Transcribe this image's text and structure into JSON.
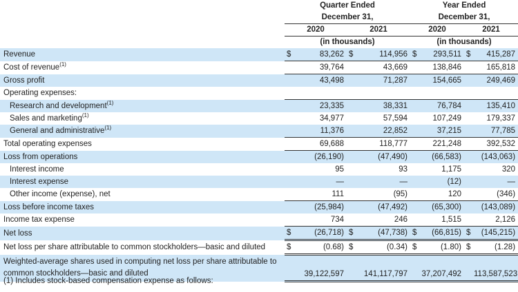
{
  "header": {
    "quarter_ended": "Quarter Ended",
    "quarter_date": "December 31,",
    "year_ended": "Year Ended",
    "year_date": "December 31,",
    "years": [
      "2020",
      "2021",
      "2020",
      "2021"
    ],
    "units": "(in thousands)"
  },
  "rows": [
    {
      "label": "Revenue",
      "fn": "",
      "vals": [
        "83,262",
        "114,956",
        "293,511",
        "415,287"
      ],
      "dollar": true
    },
    {
      "label": "Cost of revenue",
      "fn": "(1)",
      "vals": [
        "39,764",
        "43,669",
        "138,846",
        "165,818"
      ]
    },
    {
      "label": "Gross profit",
      "fn": "",
      "vals": [
        "43,498",
        "71,287",
        "154,665",
        "249,469"
      ]
    },
    {
      "label": "Operating expenses:",
      "fn": "",
      "vals": [
        "",
        "",
        "",
        ""
      ]
    },
    {
      "label": "Research and development",
      "fn": "(1)",
      "vals": [
        "23,335",
        "38,331",
        "76,784",
        "135,410"
      ]
    },
    {
      "label": "Sales and marketing",
      "fn": "(1)",
      "vals": [
        "34,977",
        "57,594",
        "107,249",
        "179,337"
      ]
    },
    {
      "label": "General and administrative",
      "fn": "(1)",
      "vals": [
        "11,376",
        "22,852",
        "37,215",
        "77,785"
      ]
    },
    {
      "label": "Total operating expenses",
      "fn": "",
      "vals": [
        "69,688",
        "118,777",
        "221,248",
        "392,532"
      ]
    },
    {
      "label": "Loss from operations",
      "fn": "",
      "vals": [
        "(26,190)",
        "(47,490)",
        "(66,583)",
        "(143,063)"
      ]
    },
    {
      "label": "Interest income",
      "fn": "",
      "vals": [
        "95",
        "93",
        "1,175",
        "320"
      ]
    },
    {
      "label": "Interest expense",
      "fn": "",
      "vals": [
        "—",
        "—",
        "(12)",
        "—"
      ]
    },
    {
      "label": "Other income (expense), net",
      "fn": "",
      "vals": [
        "111",
        "(95)",
        "120",
        "(346)"
      ]
    },
    {
      "label": "Loss before income taxes",
      "fn": "",
      "vals": [
        "(25,984)",
        "(47,492)",
        "(65,300)",
        "(143,089)"
      ]
    },
    {
      "label": "Income tax expense",
      "fn": "",
      "vals": [
        "734",
        "246",
        "1,515",
        "2,126"
      ]
    },
    {
      "label": "Net loss",
      "fn": "",
      "vals": [
        "(26,718)",
        "(47,738)",
        "(66,815)",
        "(145,215)"
      ],
      "dollar": true
    },
    {
      "label": "Net loss per share attributable to common stockholders—basic and diluted",
      "fn": "",
      "vals": [
        "(0.68)",
        "(0.34)",
        "(1.80)",
        "(1.28)"
      ],
      "dollar": true
    },
    {
      "label": "Weighted-average shares used in computing net loss per share attributable to common stockholders—basic and diluted",
      "fn": "",
      "vals": [
        "39,122,597",
        "141,117,797",
        "37,207,492",
        "113,587,523"
      ]
    }
  ],
  "currency_symbol": "$",
  "footnote": "(1) Includes stock-based compensation expense as follows:"
}
